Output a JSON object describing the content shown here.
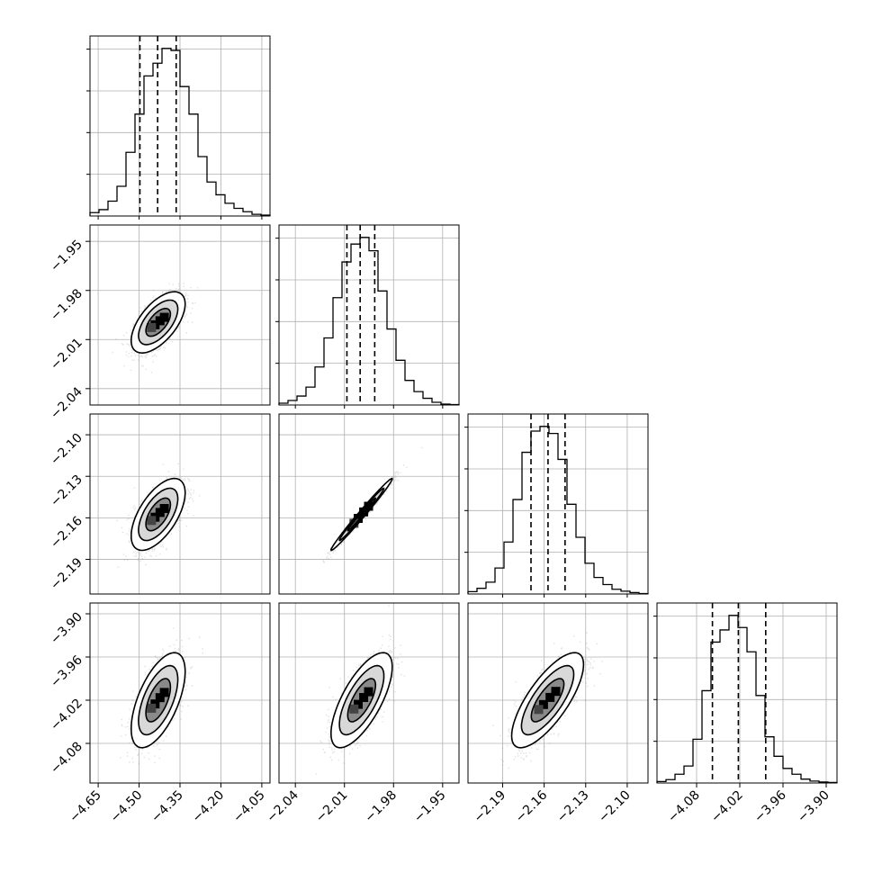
{
  "chart_data": {
    "type": "corner",
    "grid": true,
    "parameters": [
      {
        "index": 0,
        "ticks": [
          "−4.65",
          "−4.50",
          "−4.35",
          "−4.20",
          "−4.05"
        ],
        "tick_values": [
          -4.65,
          -4.5,
          -4.35,
          -4.2,
          -4.05
        ],
        "range": [
          -4.68,
          -4.02
        ],
        "mean": -4.43,
        "sd": 0.045,
        "quantiles": [
          -4.497,
          -4.432,
          -4.364
        ],
        "hist_counts": [
          8,
          15,
          35,
          70,
          150,
          240,
          330,
          360,
          395,
          390,
          305,
          240,
          140,
          80,
          50,
          30,
          18,
          10,
          4,
          2
        ]
      },
      {
        "index": 1,
        "ticks": [
          "−2.04",
          "−2.01",
          "−1.98",
          "−1.95"
        ],
        "tick_values": [
          -2.04,
          -2.01,
          -1.98,
          -1.95
        ],
        "range": [
          -2.05,
          -1.94
        ],
        "mean": -1.9995,
        "sd": 0.0085,
        "quantiles": [
          -2.0085,
          -2.0004,
          -1.9915
        ],
        "hist_counts": [
          4,
          10,
          20,
          40,
          85,
          150,
          240,
          320,
          360,
          375,
          345,
          255,
          170,
          100,
          55,
          30,
          15,
          6,
          2,
          1
        ]
      },
      {
        "index": 2,
        "ticks": [
          "−2.19",
          "−2.16",
          "−2.13",
          "−2.10"
        ],
        "tick_values": [
          -2.19,
          -2.16,
          -2.13,
          -2.1
        ],
        "range": [
          -2.215,
          -2.085
        ],
        "mean": -2.1575,
        "sd": 0.0118,
        "quantiles": [
          -2.1695,
          -2.1572,
          -2.1449
        ],
        "hist_counts": [
          5,
          12,
          25,
          55,
          110,
          200,
          300,
          345,
          355,
          340,
          285,
          190,
          120,
          65,
          35,
          20,
          10,
          6,
          3,
          1
        ]
      },
      {
        "index": 3,
        "ticks": [
          "−4.08",
          "−4.02",
          "−3.96",
          "−3.90"
        ],
        "tick_values": [
          -4.08,
          -4.02,
          -3.96,
          -3.9
        ],
        "range": [
          -4.135,
          -3.885
        ],
        "mean": -4.02,
        "sd": 0.03,
        "quantiles": [
          -4.058,
          -4.022,
          -3.984
        ],
        "hist_counts": [
          3,
          7,
          18,
          35,
          90,
          190,
          290,
          315,
          345,
          320,
          270,
          180,
          95,
          55,
          30,
          18,
          8,
          4,
          2,
          1
        ]
      }
    ],
    "correlations": [
      [
        1,
        0.6,
        0.6,
        0.6
      ],
      [
        0.6,
        1,
        0.99,
        0.7
      ],
      [
        0.6,
        0.99,
        1,
        0.75
      ],
      [
        0.6,
        0.7,
        0.75,
        1
      ]
    ]
  }
}
